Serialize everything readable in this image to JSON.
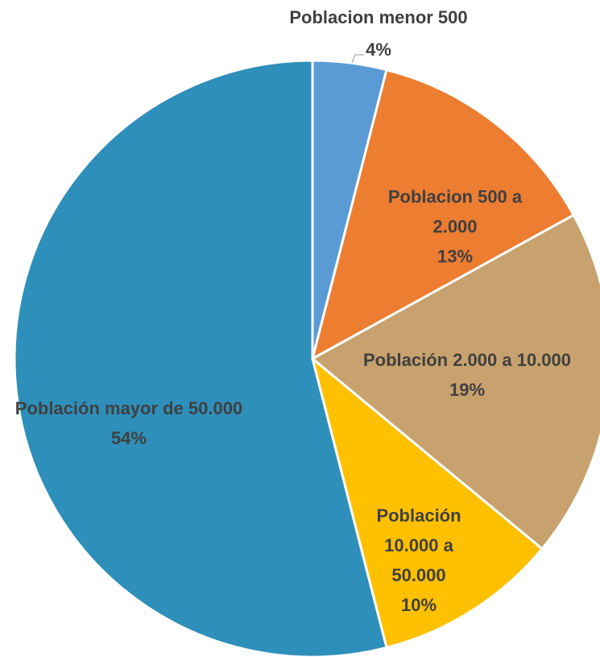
{
  "chart_data": {
    "type": "pie",
    "categories": [
      "Poblacion menor 500",
      "Poblacion 500 a 2.000",
      "Población 2.000 a 10.000",
      "Población 10.000 a 50.000",
      "Población mayor de 50.000"
    ],
    "values": [
      4,
      13,
      19,
      10,
      54
    ],
    "value_labels": [
      "4%",
      "13%",
      "19%",
      "10%",
      "54%"
    ],
    "colors": [
      "#5b9bd5",
      "#ed7d31",
      "#c8a26e",
      "#ffc000",
      "#2e8fba"
    ]
  }
}
